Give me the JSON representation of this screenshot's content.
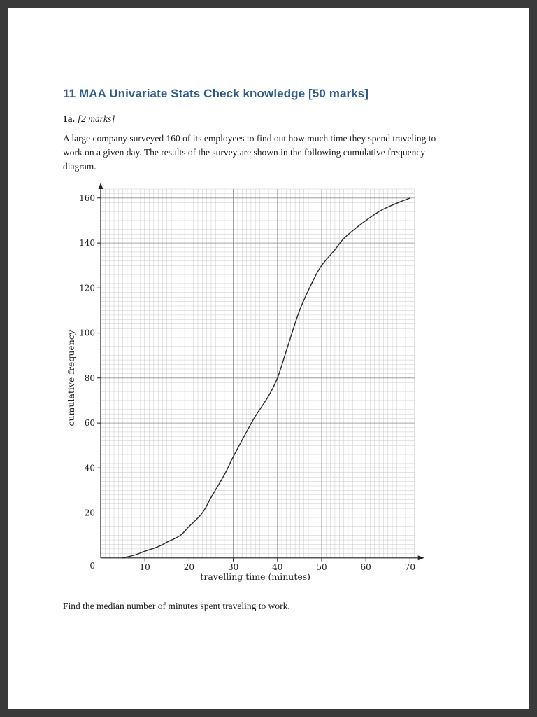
{
  "page": {
    "title": "11 MAA Univariate Stats Check knowledge [50 marks]",
    "question_number": "1a.",
    "question_marks": "[2 marks]",
    "paragraph": "A large company surveyed 160 of its employees to find out how much time they spend traveling to work on a given day. The results of the survey are shown in the following cumulative frequency diagram.",
    "prompt": "Find the median number of minutes spent traveling to work."
  },
  "colors": {
    "title_blue": "#2e5c8f",
    "page_background": "#ffffff",
    "viewer_background": "#3a3a3a",
    "minor_grid": "#c9c9c9",
    "major_grid": "#8f8f8f",
    "axis": "#222222",
    "curve": "#2b2b2b"
  },
  "chart_data": {
    "type": "line",
    "title": "",
    "xlabel": "travelling time (minutes)",
    "ylabel": "cumulative frequency",
    "xlim": [
      0,
      72
    ],
    "ylim": [
      0,
      165
    ],
    "x_grid_max": 71,
    "y_grid_max": 164,
    "grid": {
      "x_minor": 1,
      "y_minor": 2,
      "x_major": 10,
      "y_major": 20
    },
    "x_ticks": [
      10,
      20,
      30,
      40,
      50,
      60,
      70
    ],
    "y_ticks": [
      20,
      40,
      60,
      80,
      100,
      120,
      140,
      160
    ],
    "origin_label": "0",
    "legend": "none",
    "series": [
      {
        "name": "cumulative frequency ogive",
        "points": [
          [
            5,
            0
          ],
          [
            8,
            1.5
          ],
          [
            10,
            3
          ],
          [
            13,
            5
          ],
          [
            15,
            7
          ],
          [
            18,
            10
          ],
          [
            20,
            14
          ],
          [
            23,
            20
          ],
          [
            25,
            27
          ],
          [
            28,
            37
          ],
          [
            30,
            45
          ],
          [
            33,
            56
          ],
          [
            35,
            63
          ],
          [
            38,
            72
          ],
          [
            40,
            80
          ],
          [
            42,
            92
          ],
          [
            45,
            110
          ],
          [
            48,
            123
          ],
          [
            50,
            130
          ],
          [
            53,
            137
          ],
          [
            55,
            142
          ],
          [
            58,
            147
          ],
          [
            60,
            150
          ],
          [
            63,
            154
          ],
          [
            65,
            156
          ],
          [
            68,
            158.5
          ],
          [
            70,
            160
          ]
        ]
      }
    ],
    "key_readings": {
      "total_surveyed": 160,
      "median_frequency": 80,
      "median_travel_time_minutes": 40
    }
  }
}
